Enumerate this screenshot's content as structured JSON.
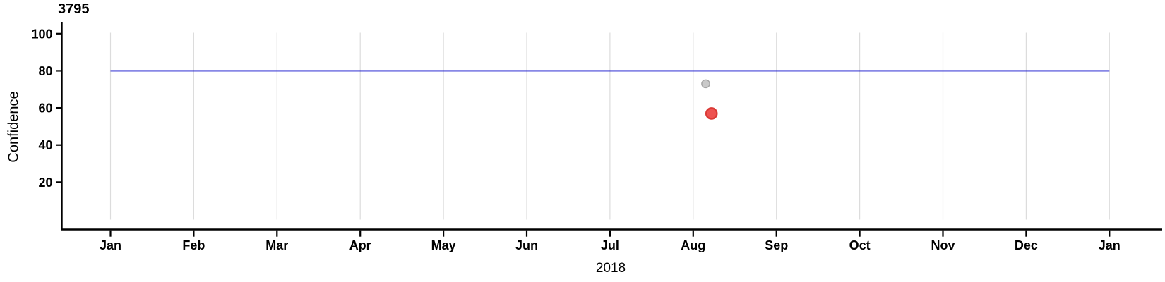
{
  "chart_data": {
    "type": "scatter",
    "title": "3795",
    "xlabel": "2018",
    "ylabel": "Confidence",
    "x_tick_labels": [
      "Jan",
      "Feb",
      "Mar",
      "Apr",
      "May",
      "Jun",
      "Jul",
      "Aug",
      "Sep",
      "Oct",
      "Nov",
      "Dec",
      "Jan"
    ],
    "x_range_months": [
      0,
      12
    ],
    "ylim": [
      0,
      100
    ],
    "y_ticks": [
      20,
      40,
      60,
      80,
      100
    ],
    "grid": {
      "vertical": true,
      "horizontal": false,
      "color": "#dcdcdc"
    },
    "legend": "none",
    "reference_line": {
      "type": "hline",
      "y": 80,
      "from_month": 0,
      "to_month": 12,
      "color": "#1212cc",
      "width": 1.8
    },
    "points": [
      {
        "name": "gray-point",
        "x_month": 7.15,
        "x_approx": "early Aug",
        "y": 73,
        "fill": "#c9c9c9",
        "stroke": "#a4a4a4",
        "radius": 5.6,
        "stroke_width": 1.4
      },
      {
        "name": "red-point",
        "x_month": 7.22,
        "x_approx": "early Aug",
        "y": 57,
        "fill": "#ee5250",
        "stroke": "#da3a36",
        "radius": 7.6,
        "stroke_width": 2.4
      }
    ],
    "axis_color": "#000000"
  }
}
